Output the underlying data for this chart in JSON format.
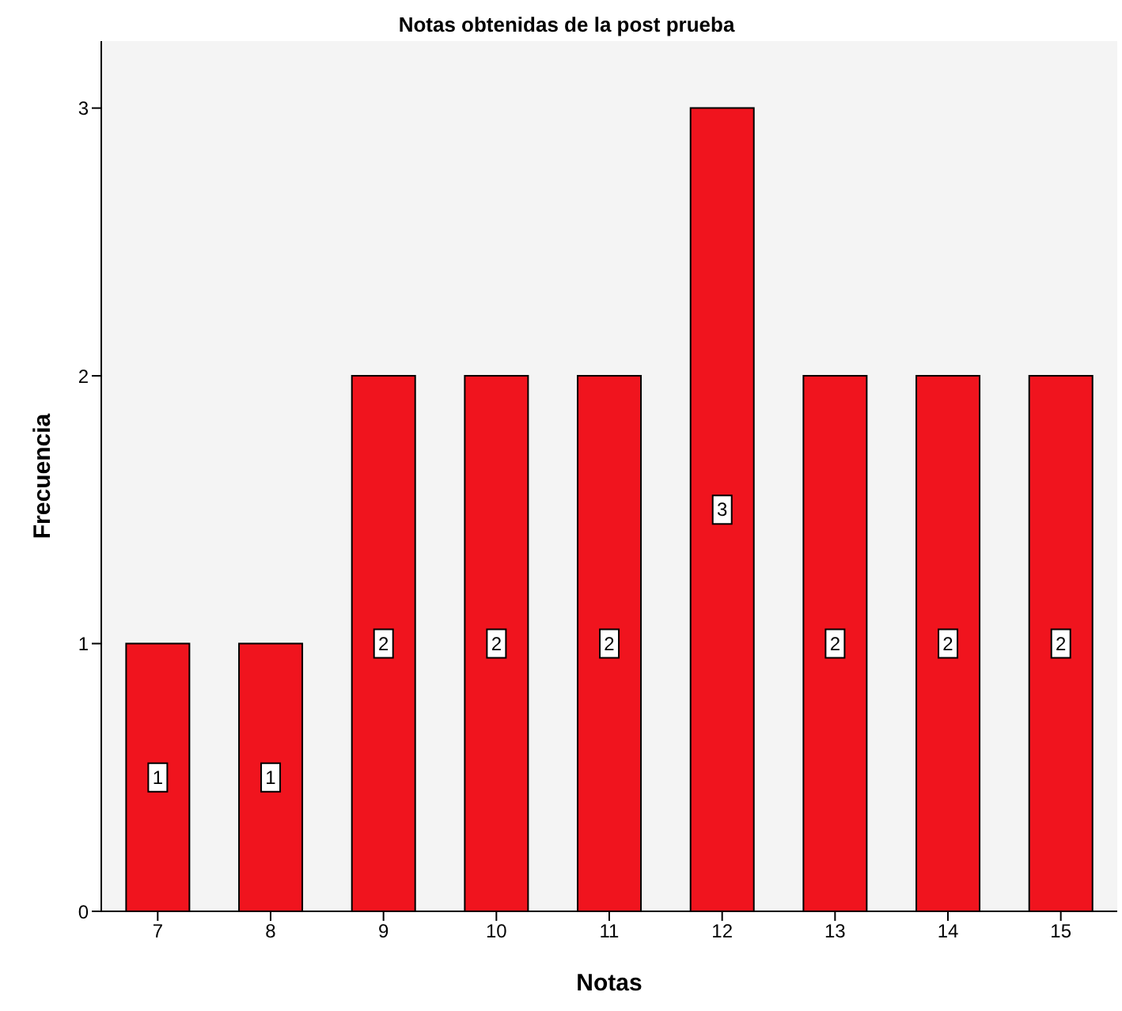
{
  "chart_data": {
    "type": "bar",
    "title": "Notas obtenidas de la post prueba",
    "xlabel": "Notas",
    "ylabel": "Frecuencia",
    "categories": [
      "7",
      "8",
      "9",
      "10",
      "11",
      "12",
      "13",
      "14",
      "15"
    ],
    "values": [
      1,
      1,
      2,
      2,
      2,
      3,
      2,
      2,
      2
    ],
    "color": "#f0141e",
    "ylim": [
      0,
      3.25
    ],
    "yticks": [
      0,
      1,
      2,
      3
    ],
    "data_labels": true
  }
}
